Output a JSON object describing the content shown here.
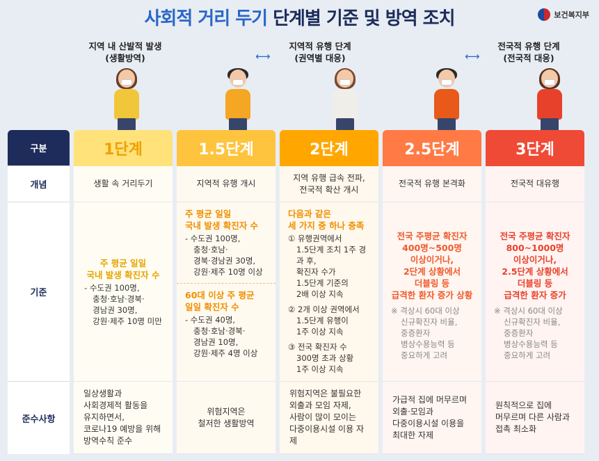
{
  "title": {
    "part1": "사회적 거리 두기",
    "part2": "단계별 기준 및 방역 조치"
  },
  "logo": {
    "text": "보건복지부"
  },
  "phases": [
    {
      "line1": "지역 내 산발적 발생",
      "line2": "(생활방역)"
    },
    {
      "line1": "지역적 유행 단계",
      "line2": "(권역별 대응)"
    },
    {
      "line1": "전국적 유행 단계",
      "line2": "(전국적 대응)"
    }
  ],
  "arrows": [
    "⟷",
    "⟷"
  ],
  "row_labels": {
    "stage": "구분",
    "concept": "개념",
    "criteria": "기준",
    "compliance": "준수사항"
  },
  "colors": {
    "stage1": "#ffe27a",
    "stage15": "#ffc43d",
    "stage2": "#ffa700",
    "stage25": "#ff7a45",
    "stage3": "#ef4a36"
  },
  "stages": [
    {
      "name": "1단계",
      "concept": "생활 속 거리두기",
      "criteria": {
        "highlight": [
          "주 평균 일일",
          "국내 발생 확진자 수"
        ],
        "lines": [
          "- 수도권 100명,",
          "충청·호남·경북·",
          "경남권 30명,",
          "강원·제주 10명 미만"
        ]
      },
      "compliance": [
        "일상생활과",
        "사회경제적 활동을",
        "유지하면서,",
        "코로나19 예방을 위해",
        "방역수칙 준수"
      ]
    },
    {
      "name": "1.5단계",
      "concept": "지역적 유행 개시",
      "criteria": {
        "highlight": [
          "주 평균 일일",
          "국내 발생 확진자 수"
        ],
        "lines": [
          "- 수도권 100명,",
          "충청·호남·",
          "경북·경남권 30명,",
          "강원·제주 10명 이상"
        ],
        "highlight2": [
          "60대 이상 주 평균",
          "일일 확진자 수"
        ],
        "lines2": [
          "- 수도권 40명,",
          "충청·호남·경북·",
          "경남권 10명,",
          "강원·제주 4명 이상"
        ]
      },
      "compliance": [
        "위험지역은",
        "철저한 생활방역"
      ]
    },
    {
      "name": "2단계",
      "concept": [
        "지역 유행 급속 전파,",
        "전국적 확산 개시"
      ],
      "criteria": {
        "highlight": [
          "다음과 같은",
          "세 가지 중 하나 충족"
        ],
        "items": [
          {
            "head": "① 유행권역에서",
            "rest": [
              "1.5단계 조치 1주 경과 후,",
              "확진자 수가",
              "1.5단계 기준의",
              "2배 이상 지속"
            ]
          },
          {
            "head": "② 2개 이상 권역에서",
            "rest": [
              "1.5단계 유행이",
              "1주 이상 지속"
            ]
          },
          {
            "head": "③ 전국 확진자 수",
            "rest": [
              "300명 초과 상황",
              "1주 이상 지속"
            ]
          }
        ]
      },
      "compliance": [
        "위험지역은 불필요한",
        "외출과 모임 자제,",
        "사람이 많이 모이는",
        "다중이용시설 이용 자제"
      ]
    },
    {
      "name": "2.5단계",
      "concept": "전국적 유행 본격화",
      "criteria": {
        "highlight": [
          "전국 주평균 확진자",
          "400명~500명",
          "이상이거나,",
          "2단계 상황에서",
          "더블링 등",
          "급격한 환자 증가 상황"
        ],
        "note": [
          "※ 격상시 60대 이상",
          "신규확진자 비율,",
          "중증환자",
          "병상수용능력 등",
          "중요하게 고려"
        ]
      },
      "compliance": [
        "가급적 집에 머무르며",
        "외출·모임과",
        "다중이용시설 이용을",
        "최대한 자제"
      ]
    },
    {
      "name": "3단계",
      "concept": "전국적 대유행",
      "criteria": {
        "highlight": [
          "전국 주평균 확진자",
          "800~1000명",
          "이상이거나,",
          "2.5단계 상황에서",
          "더블링 등",
          "급격한 환자 증가"
        ],
        "note": [
          "※ 격상시 60대 이상",
          "신규확진자 비율,",
          "중증환자",
          "병상수용능력 등",
          "중요하게 고려"
        ]
      },
      "compliance": [
        "원칙적으로 집에",
        "머무르며 다른 사람과",
        "접촉 최소화"
      ]
    }
  ]
}
